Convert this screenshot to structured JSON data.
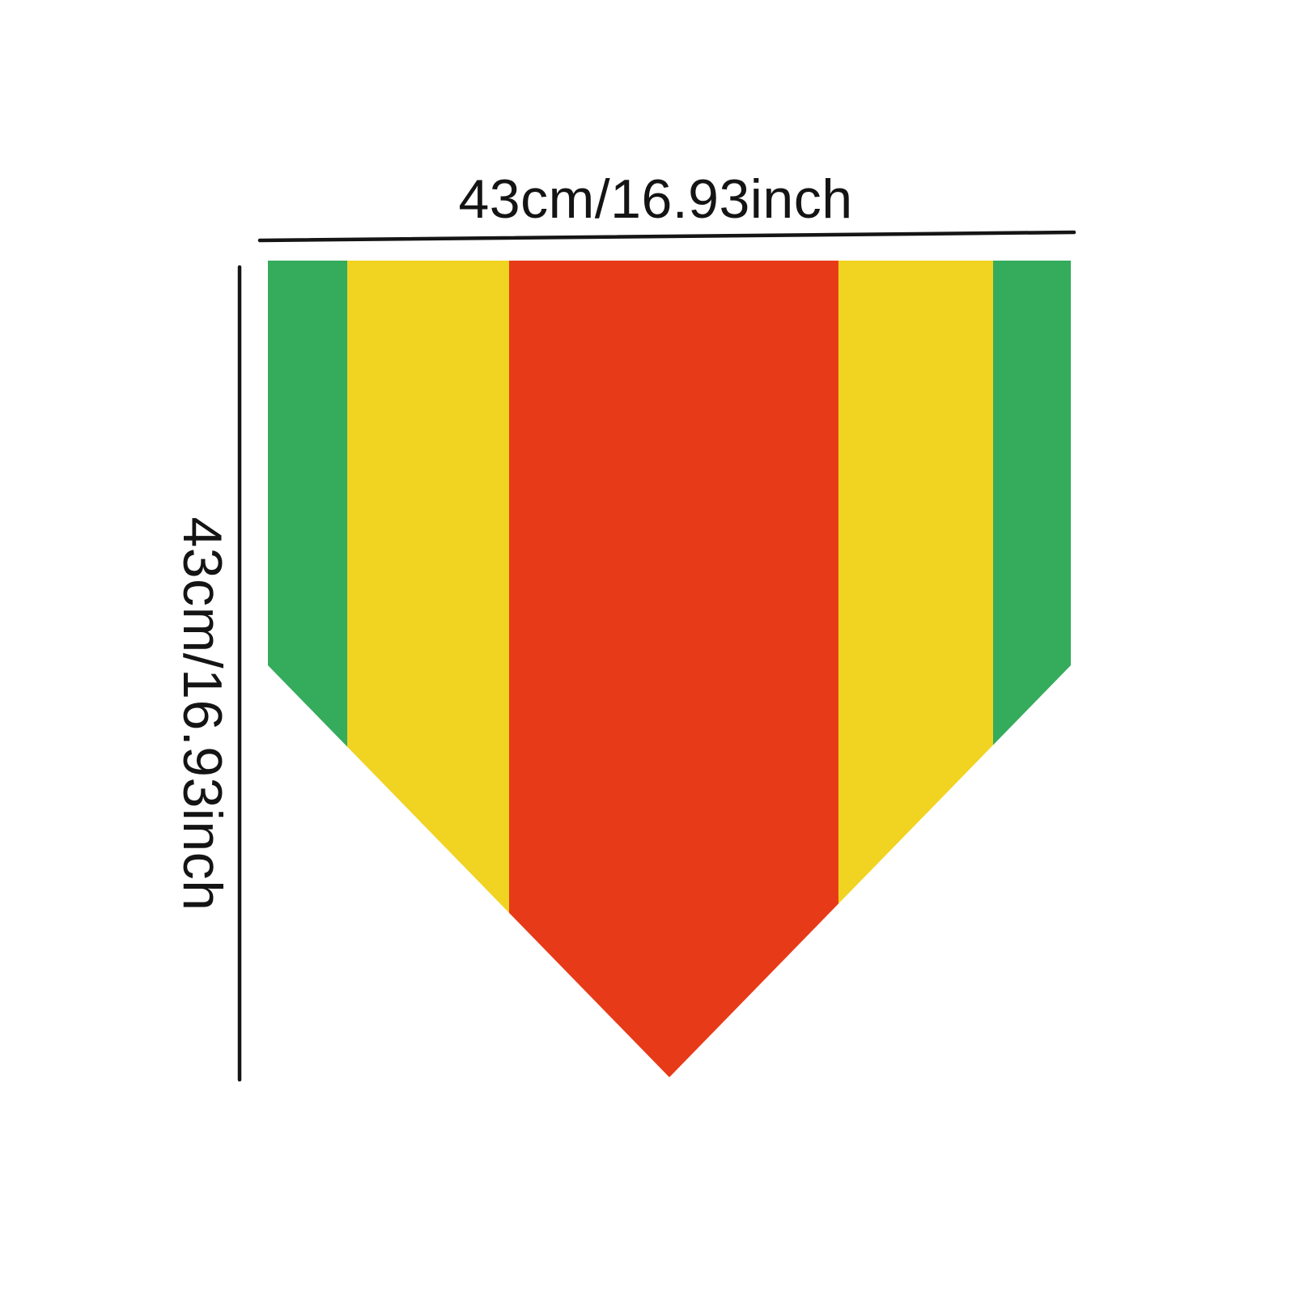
{
  "diagram": {
    "background_color": "#ffffff",
    "line_color": "#151515",
    "text_color": "#141414",
    "top_dimension": {
      "label": "43cm/16.93inch"
    },
    "left_dimension": {
      "label": "43cm/16.93inch"
    },
    "flag": {
      "shape": "pennant-pentagon",
      "stripes": [
        {
          "name": "green",
          "color": "#35ab5c",
          "fraction": 0.0988
        },
        {
          "name": "yellow",
          "color": "#f1d321",
          "fraction": 0.2016
        },
        {
          "name": "red",
          "color": "#e73a18",
          "fraction": 0.4102
        },
        {
          "name": "yellow",
          "color": "#f1d321",
          "fraction": 0.1926
        },
        {
          "name": "green",
          "color": "#35ab5c",
          "fraction": 0.0968
        }
      ]
    }
  }
}
